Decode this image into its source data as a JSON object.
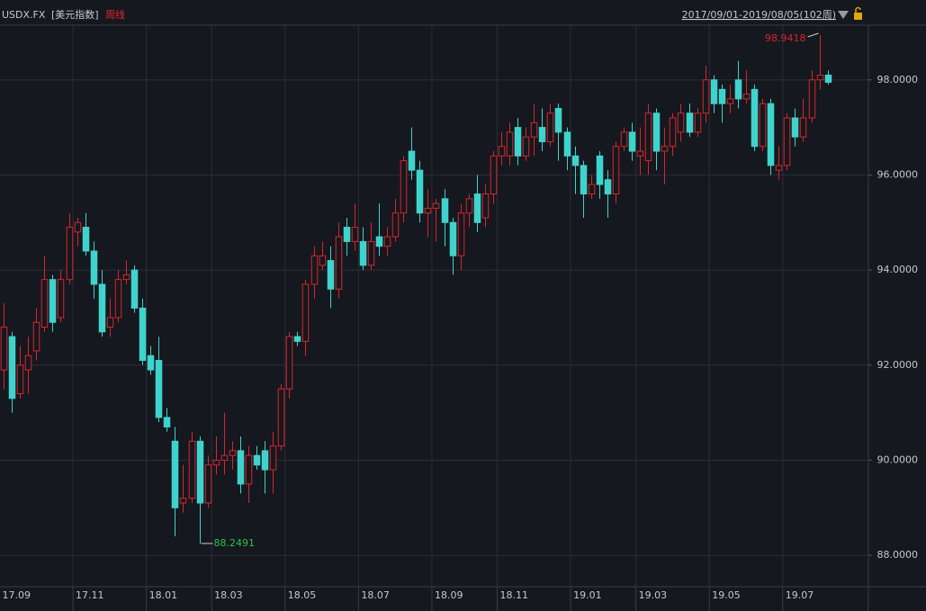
{
  "chart_data": {
    "type": "candlestick",
    "symbol": "USDX.FX",
    "name": "[美元指数]",
    "period": "周线",
    "range_label": "2017/09/01-2019/08/05(102周)",
    "up_color": "#d9252d",
    "down_color": "#3fd3cd",
    "grid": true,
    "xlim": [
      -0.44,
      106
    ],
    "ylim": [
      87.34,
      99.15
    ],
    "yticks": [
      {
        "value": 88,
        "label": "88.0000"
      },
      {
        "value": 90,
        "label": "90.0000"
      },
      {
        "value": 92,
        "label": "92.0000"
      },
      {
        "value": 94,
        "label": "94.0000"
      },
      {
        "value": 96,
        "label": "96.0000"
      },
      {
        "value": 98,
        "label": "98.0000"
      }
    ],
    "xticks": [
      {
        "value": 0,
        "label": "17.09"
      },
      {
        "value": 9,
        "label": "17.11"
      },
      {
        "value": 18,
        "label": "18.01"
      },
      {
        "value": 26,
        "label": "18.03"
      },
      {
        "value": 35,
        "label": "18.05"
      },
      {
        "value": 44,
        "label": "18.07"
      },
      {
        "value": 53,
        "label": "18.09"
      },
      {
        "value": 61,
        "label": "18.11"
      },
      {
        "value": 70,
        "label": "19.01"
      },
      {
        "value": 78,
        "label": "19.03"
      },
      {
        "value": 87,
        "label": "19.05"
      },
      {
        "value": 96,
        "label": "19.07"
      }
    ],
    "open": [
      91.9,
      92.6,
      91.4,
      91.9,
      92.3,
      92.8,
      93.8,
      93.0,
      93.8,
      94.8,
      94.9,
      94.4,
      93.7,
      92.8,
      93.0,
      93.8,
      94.0,
      93.2,
      92.2,
      92.1,
      90.9,
      90.4,
      89.1,
      89.2,
      90.4,
      89.1,
      89.9,
      90.0,
      90.1,
      90.2,
      89.5,
      90.1,
      90.2,
      89.8,
      90.3,
      91.5,
      92.6,
      92.5,
      93.7,
      94.1,
      94.2,
      93.6,
      94.9,
      94.6,
      94.6,
      94.1,
      94.7,
      94.5,
      94.7,
      95.2,
      96.5,
      96.1,
      95.2,
      95.3,
      95.5,
      95.0,
      94.3,
      95.2,
      95.6,
      95.1,
      95.6,
      96.4,
      96.4,
      97.0,
      96.4,
      96.8,
      97.0,
      96.7,
      97.4,
      96.9,
      96.4,
      96.2,
      95.6,
      96.4,
      95.9,
      95.6,
      96.6,
      96.9,
      96.4,
      96.3,
      97.3,
      96.5,
      96.6,
      96.9,
      97.3,
      96.9,
      97.3,
      98.0,
      97.8,
      97.5,
      98.0,
      97.6,
      97.8,
      96.6,
      97.5,
      96.1,
      96.2,
      97.2,
      96.8,
      97.2,
      98.0,
      98.1
    ],
    "high": [
      93.3,
      92.7,
      92.4,
      92.6,
      93.2,
      94.3,
      93.9,
      94.0,
      95.2,
      95.1,
      95.2,
      94.6,
      94.0,
      93.4,
      94.0,
      94.2,
      94.1,
      93.4,
      92.4,
      92.6,
      91.1,
      90.7,
      89.9,
      90.6,
      90.5,
      90.1,
      90.5,
      91.0,
      90.4,
      90.5,
      90.3,
      90.3,
      90.4,
      90.6,
      91.6,
      92.7,
      92.7,
      93.8,
      94.5,
      94.6,
      94.5,
      95.0,
      95.1,
      95.4,
      94.9,
      95.0,
      95.4,
      94.9,
      95.5,
      96.4,
      97.0,
      96.3,
      95.7,
      95.5,
      95.7,
      95.1,
      95.4,
      95.6,
      96.0,
      95.8,
      96.5,
      96.9,
      97.1,
      97.2,
      97.0,
      97.5,
      97.4,
      97.5,
      97.5,
      97.0,
      96.6,
      96.3,
      96.0,
      96.5,
      96.1,
      96.7,
      97.0,
      97.1,
      97.0,
      97.5,
      97.4,
      97.0,
      97.3,
      97.5,
      97.5,
      97.4,
      98.3,
      98.1,
      97.9,
      97.9,
      98.4,
      98.2,
      97.9,
      97.6,
      97.6,
      96.6,
      97.3,
      97.4,
      97.6,
      98.2,
      98.9418,
      98.2
    ],
    "low": [
      91.5,
      91.0,
      91.3,
      91.4,
      92.1,
      92.7,
      92.7,
      92.9,
      93.7,
      94.5,
      94.3,
      93.4,
      92.6,
      92.6,
      92.9,
      93.7,
      93.1,
      92.0,
      91.8,
      90.8,
      90.6,
      88.4,
      88.9,
      89.1,
      88.2491,
      89.0,
      89.7,
      89.7,
      89.8,
      89.3,
      89.1,
      89.8,
      89.3,
      89.3,
      90.2,
      91.3,
      92.4,
      92.2,
      93.4,
      94.0,
      93.2,
      93.4,
      94.3,
      94.4,
      94.0,
      94.0,
      94.3,
      94.3,
      94.6,
      95.0,
      95.9,
      95.0,
      94.7,
      94.6,
      94.5,
      93.9,
      94.0,
      94.9,
      94.8,
      94.9,
      95.4,
      96.2,
      96.2,
      96.2,
      96.3,
      96.4,
      96.5,
      96.6,
      96.3,
      96.1,
      95.6,
      95.1,
      95.5,
      95.5,
      95.1,
      95.4,
      96.5,
      96.3,
      96.0,
      96.0,
      96.1,
      95.8,
      96.4,
      96.7,
      96.8,
      96.8,
      97.1,
      97.3,
      97.1,
      97.3,
      97.4,
      97.5,
      96.5,
      96.5,
      96.0,
      95.9,
      96.1,
      96.6,
      96.7,
      97.1,
      97.8,
      97.9
    ],
    "close": [
      92.8,
      91.3,
      92.0,
      92.2,
      92.9,
      93.8,
      92.9,
      93.8,
      94.9,
      95.0,
      94.4,
      93.7,
      92.7,
      93.0,
      93.8,
      93.9,
      93.2,
      92.1,
      91.9,
      90.9,
      90.7,
      89.0,
      89.2,
      90.4,
      89.1,
      89.9,
      90.0,
      90.1,
      90.2,
      89.5,
      90.1,
      89.9,
      89.8,
      90.3,
      91.5,
      92.6,
      92.5,
      93.7,
      94.3,
      94.3,
      93.6,
      94.7,
      94.6,
      94.9,
      94.1,
      94.6,
      94.5,
      94.7,
      95.2,
      96.3,
      96.1,
      95.2,
      95.3,
      95.4,
      95.0,
      94.3,
      95.2,
      95.5,
      95.0,
      95.6,
      96.4,
      96.6,
      96.9,
      96.4,
      96.8,
      97.1,
      96.7,
      97.3,
      96.9,
      96.4,
      96.2,
      95.6,
      95.8,
      95.8,
      95.6,
      96.6,
      96.9,
      96.5,
      96.5,
      97.3,
      96.5,
      96.6,
      97.2,
      97.3,
      96.9,
      97.3,
      98.0,
      97.5,
      97.5,
      97.6,
      97.6,
      97.7,
      96.6,
      97.5,
      96.2,
      96.2,
      97.2,
      96.8,
      97.2,
      98.0,
      98.1,
      97.95
    ],
    "annotations": [
      {
        "text": "98.9418",
        "value": 98.9418
      },
      {
        "text": "88.2491",
        "value": 88.2491
      }
    ]
  }
}
